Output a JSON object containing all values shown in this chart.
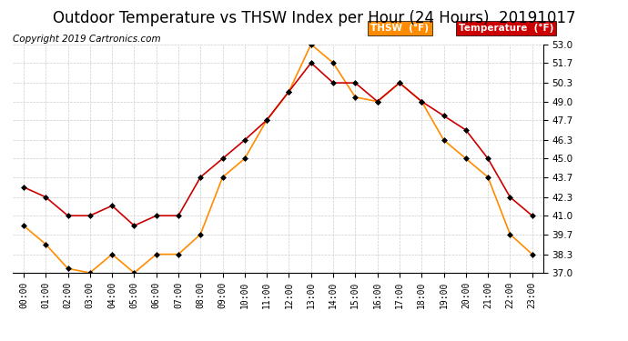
{
  "title": "Outdoor Temperature vs THSW Index per Hour (24 Hours)  20191017",
  "copyright": "Copyright 2019 Cartronics.com",
  "hours": [
    "00:00",
    "01:00",
    "02:00",
    "03:00",
    "04:00",
    "05:00",
    "06:00",
    "07:00",
    "08:00",
    "09:00",
    "10:00",
    "11:00",
    "12:00",
    "13:00",
    "14:00",
    "15:00",
    "16:00",
    "17:00",
    "18:00",
    "19:00",
    "20:00",
    "21:00",
    "22:00",
    "23:00"
  ],
  "temperature": [
    43.0,
    42.3,
    41.0,
    41.0,
    41.7,
    40.3,
    41.0,
    41.0,
    43.7,
    45.0,
    46.3,
    47.7,
    49.7,
    51.7,
    50.3,
    50.3,
    49.0,
    50.3,
    49.0,
    48.0,
    47.0,
    45.0,
    42.3,
    41.0
  ],
  "thsw": [
    40.3,
    39.0,
    37.3,
    37.0,
    38.3,
    37.0,
    38.3,
    38.3,
    39.7,
    43.7,
    45.0,
    47.7,
    49.7,
    53.0,
    51.7,
    49.3,
    49.0,
    50.3,
    49.0,
    46.3,
    45.0,
    43.7,
    39.7,
    38.3
  ],
  "ylim": [
    37.0,
    53.0
  ],
  "yticks": [
    37.0,
    38.3,
    39.7,
    41.0,
    42.3,
    43.7,
    45.0,
    46.3,
    47.7,
    49.0,
    50.3,
    51.7,
    53.0
  ],
  "temp_color": "#cc0000",
  "thsw_color": "#ff8c00",
  "legend_thsw_bg": "#ff8c00",
  "legend_temp_bg": "#cc0000",
  "background_color": "#ffffff",
  "grid_color": "#cccccc",
  "title_fontsize": 12,
  "copyright_fontsize": 7.5
}
